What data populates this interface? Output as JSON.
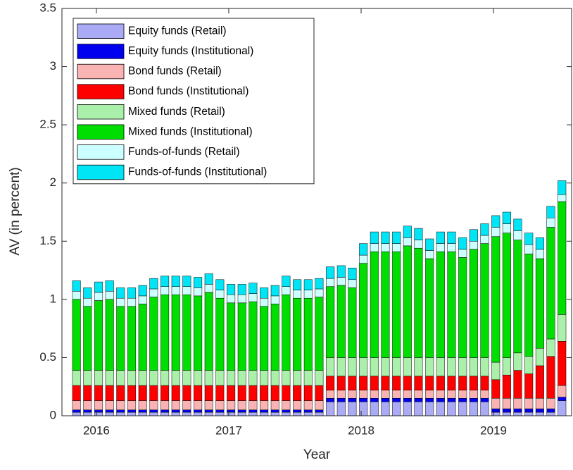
{
  "chart_data": {
    "type": "stacked_bar",
    "x_label": "Year",
    "y_label": "AV (in percent)",
    "x": [
      2015.85,
      2015.933,
      2016.017,
      2016.1,
      2016.183,
      2016.267,
      2016.35,
      2016.433,
      2016.517,
      2016.6,
      2016.683,
      2016.767,
      2016.85,
      2016.933,
      2017.017,
      2017.1,
      2017.183,
      2017.267,
      2017.35,
      2017.433,
      2017.517,
      2017.6,
      2017.683,
      2017.767,
      2017.85,
      2017.933,
      2018.017,
      2018.1,
      2018.183,
      2018.267,
      2018.35,
      2018.433,
      2018.517,
      2018.6,
      2018.683,
      2018.767,
      2018.85,
      2018.933,
      2019.017,
      2019.1,
      2019.183,
      2019.267,
      2019.35,
      2019.433,
      2019.517
    ],
    "xlim": [
      2015.74,
      2019.59
    ],
    "xticks": [
      2016,
      2017,
      2018,
      2019
    ],
    "ylim": [
      0,
      3.5
    ],
    "yticks": [
      0,
      0.5,
      1,
      1.5,
      2,
      2.5,
      3,
      3.5
    ],
    "grid": false,
    "legend_position": "upper-left",
    "series": [
      {
        "name": "Equity funds (Retail)",
        "color": "#aaaaf5",
        "values": [
          0.03,
          0.03,
          0.03,
          0.03,
          0.03,
          0.03,
          0.03,
          0.03,
          0.03,
          0.03,
          0.03,
          0.03,
          0.03,
          0.03,
          0.03,
          0.03,
          0.03,
          0.03,
          0.03,
          0.03,
          0.03,
          0.03,
          0.03,
          0.12,
          0.12,
          0.12,
          0.12,
          0.12,
          0.12,
          0.12,
          0.12,
          0.12,
          0.12,
          0.12,
          0.12,
          0.12,
          0.12,
          0.12,
          0.03,
          0.03,
          0.03,
          0.03,
          0.03,
          0.03,
          0.13
        ]
      },
      {
        "name": "Equity funds (Institutional)",
        "color": "#0000ee",
        "values": [
          0.02,
          0.02,
          0.02,
          0.02,
          0.02,
          0.02,
          0.02,
          0.02,
          0.02,
          0.02,
          0.02,
          0.02,
          0.02,
          0.02,
          0.02,
          0.02,
          0.02,
          0.02,
          0.02,
          0.02,
          0.02,
          0.02,
          0.02,
          0.03,
          0.03,
          0.03,
          0.03,
          0.03,
          0.03,
          0.03,
          0.03,
          0.03,
          0.03,
          0.03,
          0.03,
          0.03,
          0.03,
          0.03,
          0.03,
          0.03,
          0.03,
          0.03,
          0.03,
          0.03,
          0.03
        ]
      },
      {
        "name": "Bond funds (Retail)",
        "color": "#f9b3b3",
        "values": [
          0.08,
          0.08,
          0.08,
          0.08,
          0.08,
          0.08,
          0.08,
          0.08,
          0.08,
          0.08,
          0.08,
          0.08,
          0.08,
          0.08,
          0.08,
          0.08,
          0.08,
          0.08,
          0.08,
          0.08,
          0.08,
          0.08,
          0.08,
          0.07,
          0.07,
          0.07,
          0.07,
          0.07,
          0.07,
          0.07,
          0.07,
          0.07,
          0.07,
          0.07,
          0.07,
          0.07,
          0.07,
          0.07,
          0.09,
          0.09,
          0.09,
          0.09,
          0.09,
          0.09,
          0.1
        ]
      },
      {
        "name": "Bond funds (Institutional)",
        "color": "#ff0000",
        "values": [
          0.13,
          0.13,
          0.13,
          0.13,
          0.13,
          0.13,
          0.13,
          0.13,
          0.13,
          0.13,
          0.13,
          0.13,
          0.13,
          0.13,
          0.13,
          0.13,
          0.13,
          0.13,
          0.13,
          0.13,
          0.13,
          0.13,
          0.13,
          0.12,
          0.12,
          0.12,
          0.12,
          0.12,
          0.12,
          0.12,
          0.12,
          0.12,
          0.12,
          0.12,
          0.12,
          0.12,
          0.12,
          0.12,
          0.16,
          0.2,
          0.24,
          0.21,
          0.28,
          0.36,
          0.38
        ]
      },
      {
        "name": "Mixed funds (Retail)",
        "color": "#aaf0aa",
        "values": [
          0.13,
          0.13,
          0.13,
          0.13,
          0.13,
          0.13,
          0.13,
          0.13,
          0.13,
          0.13,
          0.13,
          0.13,
          0.13,
          0.13,
          0.13,
          0.13,
          0.13,
          0.13,
          0.13,
          0.13,
          0.13,
          0.13,
          0.13,
          0.16,
          0.16,
          0.16,
          0.16,
          0.16,
          0.16,
          0.16,
          0.16,
          0.16,
          0.16,
          0.16,
          0.16,
          0.16,
          0.16,
          0.16,
          0.15,
          0.15,
          0.15,
          0.15,
          0.15,
          0.15,
          0.23
        ]
      },
      {
        "name": "Mixed funds (Institutional)",
        "color": "#00dd00",
        "values": [
          0.61,
          0.55,
          0.6,
          0.61,
          0.55,
          0.55,
          0.57,
          0.63,
          0.65,
          0.65,
          0.65,
          0.64,
          0.67,
          0.62,
          0.58,
          0.58,
          0.59,
          0.55,
          0.57,
          0.65,
          0.62,
          0.62,
          0.63,
          0.61,
          0.62,
          0.6,
          0.81,
          0.91,
          0.91,
          0.91,
          0.96,
          0.94,
          0.85,
          0.91,
          0.91,
          0.86,
          0.93,
          0.98,
          1.08,
          1.07,
          0.97,
          0.88,
          0.77,
          0.96,
          0.97
        ]
      },
      {
        "name": "Funds-of-funds (Retail)",
        "color": "#ccffff",
        "values": [
          0.07,
          0.07,
          0.07,
          0.07,
          0.07,
          0.07,
          0.07,
          0.07,
          0.07,
          0.07,
          0.07,
          0.07,
          0.07,
          0.07,
          0.07,
          0.07,
          0.07,
          0.07,
          0.07,
          0.07,
          0.07,
          0.07,
          0.07,
          0.07,
          0.07,
          0.07,
          0.07,
          0.07,
          0.07,
          0.07,
          0.07,
          0.07,
          0.07,
          0.07,
          0.07,
          0.07,
          0.07,
          0.07,
          0.08,
          0.08,
          0.08,
          0.08,
          0.08,
          0.08,
          0.06
        ]
      },
      {
        "name": "Funds-of-funds (Institutional)",
        "color": "#00e5f5",
        "values": [
          0.09,
          0.09,
          0.09,
          0.09,
          0.09,
          0.09,
          0.09,
          0.09,
          0.09,
          0.09,
          0.09,
          0.09,
          0.09,
          0.09,
          0.09,
          0.09,
          0.09,
          0.09,
          0.09,
          0.09,
          0.09,
          0.09,
          0.09,
          0.1,
          0.1,
          0.1,
          0.1,
          0.1,
          0.1,
          0.1,
          0.1,
          0.1,
          0.1,
          0.1,
          0.1,
          0.1,
          0.1,
          0.1,
          0.1,
          0.1,
          0.1,
          0.1,
          0.1,
          0.1,
          0.12
        ]
      }
    ]
  }
}
